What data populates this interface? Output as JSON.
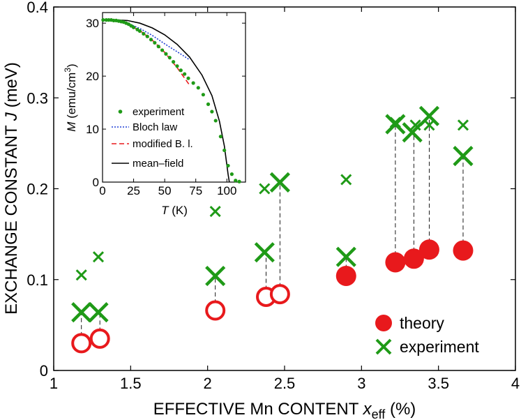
{
  "colors": {
    "theory": "#e8191c",
    "experiment": "#1f9a17",
    "bloch": "#1f3fd6",
    "modified": "#e8191c",
    "meanfield": "#000000"
  },
  "chart_data": [
    {
      "type": "scatter",
      "xlabel": "EFFECTIVE Mn CONTENT",
      "xlabel_var": "x",
      "xlabel_sub": "eff",
      "xlabel_unit": "(%)",
      "ylabel": "EXCHANGE CONSTANT",
      "ylabel_var": "J",
      "ylabel_unit": "(meV)",
      "xlim": [
        1,
        4
      ],
      "ylim": [
        0,
        0.4
      ],
      "xticks": [
        1,
        1.5,
        2,
        2.5,
        3,
        3.5,
        4
      ],
      "xtick_labels": [
        "1",
        "1.5",
        "2",
        "2.5",
        "3",
        "3.5",
        "4"
      ],
      "yticks": [
        0,
        0.1,
        0.2,
        0.3,
        0.4
      ],
      "ytick_labels": [
        "0",
        "0.1",
        "0.2",
        "0.3",
        "0.4"
      ],
      "legend": {
        "position": "bottom-right",
        "entries": [
          "theory",
          "experiment"
        ]
      },
      "theory_open": [
        {
          "x": 1.18,
          "y": 0.03
        },
        {
          "x": 1.3,
          "y": 0.035
        },
        {
          "x": 2.05,
          "y": 0.066
        },
        {
          "x": 2.38,
          "y": 0.081
        },
        {
          "x": 2.47,
          "y": 0.084
        }
      ],
      "theory_filled": [
        {
          "x": 2.9,
          "y": 0.104
        },
        {
          "x": 3.22,
          "y": 0.119
        },
        {
          "x": 3.34,
          "y": 0.123
        },
        {
          "x": 3.44,
          "y": 0.133
        },
        {
          "x": 3.66,
          "y": 0.132
        }
      ],
      "experiment_large": [
        {
          "x": 1.18,
          "y": 0.064
        },
        {
          "x": 1.29,
          "y": 0.064
        },
        {
          "x": 2.05,
          "y": 0.104
        },
        {
          "x": 2.37,
          "y": 0.13
        },
        {
          "x": 2.47,
          "y": 0.207
        },
        {
          "x": 2.9,
          "y": 0.125
        },
        {
          "x": 3.22,
          "y": 0.271
        },
        {
          "x": 3.33,
          "y": 0.262
        },
        {
          "x": 3.44,
          "y": 0.28
        },
        {
          "x": 3.66,
          "y": 0.236
        }
      ],
      "experiment_small": [
        {
          "x": 1.18,
          "y": 0.105
        },
        {
          "x": 1.29,
          "y": 0.125
        },
        {
          "x": 2.05,
          "y": 0.175
        },
        {
          "x": 2.37,
          "y": 0.2
        },
        {
          "x": 2.9,
          "y": 0.21
        },
        {
          "x": 3.22,
          "y": 0.273
        },
        {
          "x": 3.35,
          "y": 0.27
        },
        {
          "x": 3.44,
          "y": 0.27
        },
        {
          "x": 3.66,
          "y": 0.27
        }
      ],
      "dashed_links": [
        {
          "x": 1.18,
          "y1": 0.03,
          "y2": 0.064
        },
        {
          "x": 1.3,
          "y1": 0.035,
          "y2": 0.064
        },
        {
          "x": 2.05,
          "y1": 0.066,
          "y2": 0.104
        },
        {
          "x": 2.38,
          "y1": 0.081,
          "y2": 0.13
        },
        {
          "x": 2.47,
          "y1": 0.084,
          "y2": 0.207
        },
        {
          "x": 2.9,
          "y1": 0.104,
          "y2": 0.125
        },
        {
          "x": 3.22,
          "y1": 0.119,
          "y2": 0.271
        },
        {
          "x": 3.34,
          "y1": 0.123,
          "y2": 0.262
        },
        {
          "x": 3.44,
          "y1": 0.133,
          "y2": 0.28
        },
        {
          "x": 3.66,
          "y1": 0.132,
          "y2": 0.236
        }
      ]
    },
    {
      "type": "line",
      "name": "inset",
      "xlabel_var": "T",
      "xlabel_unit": "(K)",
      "ylabel_var": "M",
      "ylabel_unit": "(emu/cm",
      "ylabel_sup": "3",
      "xlim": [
        0,
        115
      ],
      "ylim": [
        0,
        32
      ],
      "xticks": [
        0,
        25,
        50,
        75,
        100
      ],
      "xtick_labels": [
        "0",
        "25",
        "50",
        "75",
        "100"
      ],
      "yticks": [
        0,
        10,
        20,
        30
      ],
      "ytick_labels": [
        "0",
        "10",
        "20",
        "30"
      ],
      "legend_labels": [
        "experiment",
        "Bloch law",
        "modified B. l.",
        "mean–field"
      ],
      "experiment": [
        [
          0.5,
          30.6
        ],
        [
          3,
          30.6
        ],
        [
          5,
          30.6
        ],
        [
          7,
          30.6
        ],
        [
          9,
          30.5
        ],
        [
          11,
          30.5
        ],
        [
          13,
          30.4
        ],
        [
          15,
          30.3
        ],
        [
          17,
          30.2
        ],
        [
          19,
          30.0
        ],
        [
          21,
          29.8
        ],
        [
          23,
          29.5
        ],
        [
          25,
          29.2
        ],
        [
          28,
          28.8
        ],
        [
          30,
          28.5
        ],
        [
          33,
          28.0
        ],
        [
          36,
          27.5
        ],
        [
          39,
          26.9
        ],
        [
          42,
          26.3
        ],
        [
          45,
          25.6
        ],
        [
          48,
          24.9
        ],
        [
          51,
          24.2
        ],
        [
          54,
          23.5
        ],
        [
          57,
          22.7
        ],
        [
          60,
          21.9
        ],
        [
          63,
          21.1
        ],
        [
          66,
          20.4
        ],
        [
          69,
          19.6
        ],
        [
          73,
          18.7
        ],
        [
          77,
          17.8
        ],
        [
          81,
          16.5
        ],
        [
          85,
          14.7
        ],
        [
          88,
          13.3
        ],
        [
          91,
          11.6
        ],
        [
          95,
          8.6
        ],
        [
          98,
          6.0
        ],
        [
          101,
          3.1
        ],
        [
          104,
          1.5
        ],
        [
          107,
          0.3
        ],
        [
          110,
          0.1
        ]
      ],
      "bloch": [
        [
          0,
          30.6
        ],
        [
          10,
          30.5
        ],
        [
          20,
          30.0
        ],
        [
          30,
          29.0
        ],
        [
          40,
          27.7
        ],
        [
          50,
          26.1
        ],
        [
          60,
          24.6
        ],
        [
          70,
          23.1
        ]
      ],
      "modified": [
        [
          0,
          30.6
        ],
        [
          10,
          30.5
        ],
        [
          20,
          29.8
        ],
        [
          30,
          28.6
        ],
        [
          40,
          26.8
        ],
        [
          50,
          24.5
        ],
        [
          60,
          21.6
        ],
        [
          70,
          18.3
        ]
      ],
      "meanfield": [
        [
          0,
          30.6
        ],
        [
          10,
          30.6
        ],
        [
          20,
          30.5
        ],
        [
          30,
          30.0
        ],
        [
          40,
          29.1
        ],
        [
          50,
          27.8
        ],
        [
          60,
          26.0
        ],
        [
          70,
          23.6
        ],
        [
          80,
          20.2
        ],
        [
          88,
          16.3
        ],
        [
          94,
          11.5
        ],
        [
          98,
          6.8
        ],
        [
          101,
          1.5
        ],
        [
          102,
          0
        ]
      ]
    }
  ]
}
